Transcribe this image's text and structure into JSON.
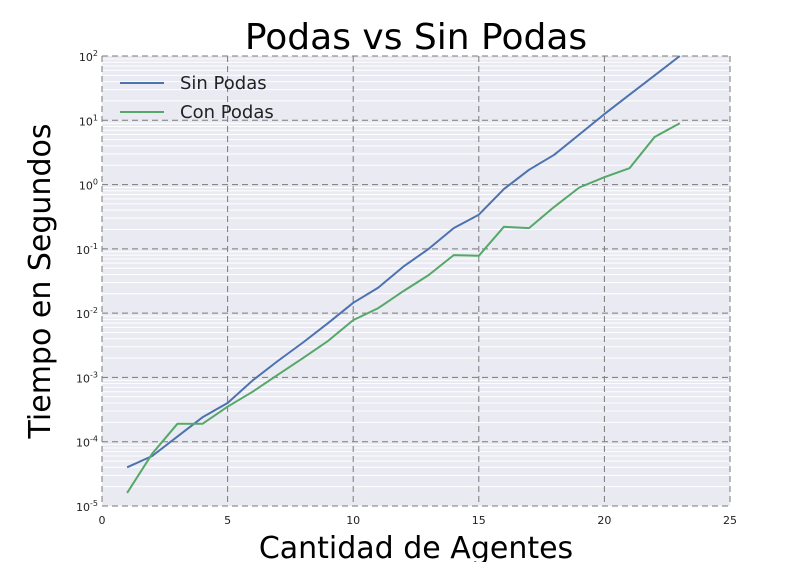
{
  "chart_data": {
    "type": "line",
    "title": "Podas vs Sin Podas",
    "xlabel": "Cantidad de Agentes",
    "ylabel": "Tiempo en Segundos",
    "xlim": [
      0,
      25
    ],
    "ylim": [
      1e-05,
      100
    ],
    "yscale": "log",
    "grid": true,
    "legend_position": "top-left",
    "x_ticks": [
      0,
      5,
      10,
      15,
      20,
      25
    ],
    "y_ticks": [
      {
        "base": "10",
        "exp": "-5",
        "value": 1e-05
      },
      {
        "base": "10",
        "exp": "-4",
        "value": 0.0001
      },
      {
        "base": "10",
        "exp": "-3",
        "value": 0.001
      },
      {
        "base": "10",
        "exp": "-2",
        "value": 0.01
      },
      {
        "base": "10",
        "exp": "-1",
        "value": 0.1
      },
      {
        "base": "10",
        "exp": "0",
        "value": 1
      },
      {
        "base": "10",
        "exp": "1",
        "value": 10
      },
      {
        "base": "10",
        "exp": "2",
        "value": 100
      }
    ],
    "series": [
      {
        "name": "Sin Podas",
        "color": "#4c72b0",
        "x": [
          1,
          2,
          3,
          4,
          5,
          6,
          7,
          8,
          9,
          10,
          11,
          12,
          13,
          14,
          15,
          16,
          17,
          18,
          19,
          20,
          21,
          22,
          23
        ],
        "y": [
          4e-05,
          6e-05,
          0.00012,
          0.00024,
          0.0004,
          0.0009,
          0.0018,
          0.0035,
          0.007,
          0.0145,
          0.025,
          0.053,
          0.1,
          0.21,
          0.34,
          0.85,
          1.7,
          2.9,
          6.0,
          12.5,
          25,
          50,
          100
        ]
      },
      {
        "name": "Con Podas",
        "color": "#55a868",
        "x": [
          1,
          2,
          3,
          4,
          5,
          6,
          7,
          8,
          9,
          10,
          11,
          12,
          13,
          14,
          15,
          16,
          17,
          18,
          19,
          20,
          21,
          22,
          23
        ],
        "y": [
          1.6e-05,
          6.5e-05,
          0.00019,
          0.00019,
          0.00035,
          0.0006,
          0.0011,
          0.002,
          0.0037,
          0.0078,
          0.012,
          0.022,
          0.039,
          0.08,
          0.078,
          0.22,
          0.21,
          0.45,
          0.9,
          1.3,
          1.8,
          5.5,
          9.0
        ]
      }
    ]
  }
}
